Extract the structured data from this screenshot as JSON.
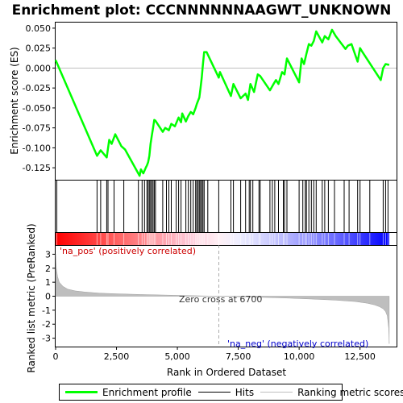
{
  "chart_data": {
    "type": "line",
    "title": "Enrichment plot: CCCNNNNNNAAGWT_UNKNOWN",
    "top_panel": {
      "ylabel": "Enrichment score (ES)",
      "ylim": [
        -0.14,
        0.057
      ],
      "yticks": [
        0.05,
        0.025,
        0.0,
        -0.025,
        -0.05,
        -0.075,
        -0.1,
        -0.125
      ],
      "ytick_labels": [
        "0.050",
        "0.025",
        "0.000",
        "-0.025",
        "-0.050",
        "-0.075",
        "-0.100",
        "-0.125"
      ],
      "series": [
        {
          "name": "Enrichment profile",
          "color": "#00ff00",
          "x": [
            0,
            1700,
            1850,
            2100,
            2200,
            2300,
            2450,
            2700,
            2850,
            3450,
            3500,
            3600,
            3700,
            3750,
            3800,
            3850,
            3900,
            3950,
            4000,
            4050,
            4100,
            4400,
            4500,
            4650,
            4750,
            4900,
            5050,
            5150,
            5200,
            5350,
            5450,
            5550,
            5650,
            5750,
            5800,
            5900,
            5950,
            6000,
            6050,
            6100,
            6200,
            6700,
            6750,
            7200,
            7300,
            7600,
            7800,
            7900,
            8000,
            8150,
            8300,
            8400,
            8800,
            8950,
            9050,
            9150,
            9300,
            9400,
            9500,
            10000,
            10100,
            10200,
            10300,
            10400,
            10500,
            10600,
            10700,
            10950,
            11050,
            11200,
            11350,
            11500,
            11900,
            12000,
            12150,
            12400,
            12500,
            12600,
            13350,
            13450,
            13550,
            13700
          ],
          "y": [
            0.01,
            -0.11,
            -0.103,
            -0.112,
            -0.09,
            -0.095,
            -0.083,
            -0.098,
            -0.102,
            -0.135,
            -0.127,
            -0.132,
            -0.125,
            -0.122,
            -0.118,
            -0.11,
            -0.095,
            -0.085,
            -0.075,
            -0.065,
            -0.066,
            -0.08,
            -0.075,
            -0.078,
            -0.07,
            -0.073,
            -0.062,
            -0.068,
            -0.057,
            -0.067,
            -0.06,
            -0.055,
            -0.058,
            -0.05,
            -0.045,
            -0.037,
            -0.025,
            -0.012,
            0.005,
            0.02,
            0.02,
            -0.012,
            -0.005,
            -0.035,
            -0.02,
            -0.038,
            -0.032,
            -0.04,
            -0.02,
            -0.03,
            -0.008,
            -0.01,
            -0.028,
            -0.02,
            -0.015,
            -0.02,
            -0.005,
            -0.008,
            0.012,
            -0.018,
            0.012,
            0.005,
            0.018,
            0.03,
            0.028,
            0.034,
            0.046,
            0.032,
            0.04,
            0.036,
            0.048,
            0.04,
            0.024,
            0.028,
            0.03,
            0.008,
            0.025,
            0.02,
            -0.015,
            0.0,
            0.005,
            0.004
          ]
        }
      ]
    },
    "hits_panel": {
      "positions": [
        50,
        1700,
        1850,
        2100,
        2150,
        2400,
        2800,
        3400,
        3550,
        3650,
        3750,
        3800,
        3850,
        3900,
        3950,
        4000,
        4050,
        4100,
        4400,
        4550,
        4650,
        4750,
        4950,
        5050,
        5150,
        5350,
        5450,
        5550,
        5650,
        5750,
        5800,
        5850,
        5900,
        5950,
        6000,
        6050,
        6100,
        6250,
        6700,
        7200,
        7300,
        7600,
        7800,
        7950,
        8000,
        8100,
        8350,
        8400,
        8800,
        8900,
        9000,
        9150,
        9350,
        9400,
        9500,
        10000,
        10150,
        10250,
        10300,
        10400,
        10500,
        10600,
        10700,
        10950,
        11050,
        11200,
        11450,
        11850,
        12050,
        12400,
        12500,
        12900,
        13450,
        13550,
        13650
      ]
    },
    "bottom_panel": {
      "ylabel": "Ranked list metric (PreRanked)",
      "ylim": [
        -3.6,
        3.6
      ],
      "yticks": [
        3,
        2,
        1,
        0,
        -1,
        -2,
        -3
      ],
      "ytick_labels": [
        "3",
        "2",
        "1",
        "0",
        "-1",
        "-2",
        "-3"
      ],
      "series": [
        {
          "name": "Ranking metric scores",
          "color": "#bebebe",
          "x": [
            0,
            30,
            80,
            150,
            300,
            500,
            800,
            1200,
            1800,
            2500,
            3500,
            4500,
            5500,
            6700,
            8000,
            9500,
            10500,
            11500,
            12300,
            12800,
            13100,
            13300,
            13450,
            13550,
            13620,
            13680,
            13700
          ],
          "y": [
            3.0,
            2.0,
            1.4,
            1.0,
            0.7,
            0.5,
            0.38,
            0.3,
            0.22,
            0.17,
            0.12,
            0.08,
            0.04,
            0.0,
            -0.06,
            -0.13,
            -0.2,
            -0.28,
            -0.38,
            -0.5,
            -0.62,
            -0.75,
            -0.9,
            -1.1,
            -1.4,
            -2.3,
            -3.4
          ]
        }
      ],
      "zero_cross_rank": 6700,
      "annotations": {
        "zero_cross": "Zero cross at 6700",
        "pos_label": "'na_pos' (positively correlated)",
        "neg_label": "'na_neg' (negatively correlated)"
      }
    },
    "xlabel": "Rank in Ordered Dataset",
    "xlim": [
      0,
      14000
    ],
    "xticks": [
      0,
      2500,
      5000,
      7500,
      10000,
      12500
    ],
    "xtick_labels": [
      "0",
      "2,500",
      "5,000",
      "7,500",
      "10,000",
      "12,500"
    ],
    "dataset_size": 13700,
    "grid": false,
    "legend": {
      "placement": "bottom",
      "items": [
        {
          "label": "Enrichment profile",
          "color": "#00ff00"
        },
        {
          "label": "Hits",
          "color": "#000000"
        },
        {
          "label": "Ranking metric scores",
          "color": "#bebebe"
        }
      ]
    },
    "colors": {
      "pos_text": "#cc0000",
      "neg_text": "#0000cc",
      "bar_red": "#ff0000",
      "bar_blue": "#0000ff"
    }
  }
}
